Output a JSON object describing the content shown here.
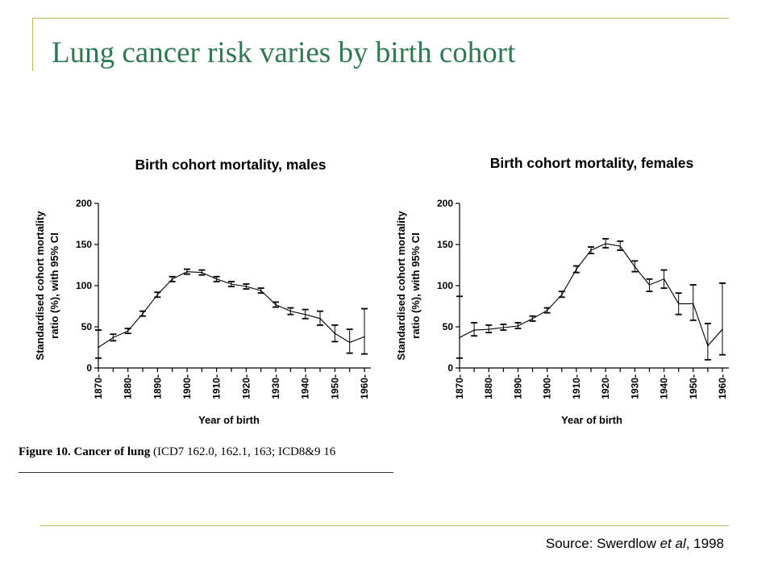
{
  "slide": {
    "title": "Lung cancer risk varies by birth cohort",
    "source_prefix": "Source: Swerdlow ",
    "source_italic": "et al",
    "source_suffix": ", 1998"
  },
  "figure_caption": {
    "bold": "Figure 10. Cancer of lung",
    "rest": " (ICD7 162.0, 162.1, 163; ICD8&9 16"
  },
  "colors": {
    "title": "#2e7a4f",
    "frame": "#c8b560",
    "ink": "#000000"
  },
  "chart_data": [
    {
      "type": "line",
      "title": "Birth cohort mortality, males",
      "xlabel": "Year of birth",
      "ylabel_lines": [
        "Standardised cohort mortality",
        "ratio (%), with 95% CI"
      ],
      "ylim": [
        0,
        200
      ],
      "yticks": [
        0,
        50,
        100,
        150,
        200
      ],
      "x_tick_labels": [
        "1870-",
        "1880-",
        "1890-",
        "1900-",
        "1910-",
        "1920-",
        "1930-",
        "1940-",
        "1950-",
        "1960-"
      ],
      "x": [
        1870,
        1875,
        1880,
        1885,
        1890,
        1895,
        1900,
        1905,
        1910,
        1915,
        1920,
        1925,
        1930,
        1935,
        1940,
        1945,
        1950,
        1955,
        1960
      ],
      "series": [
        {
          "values": [
            25,
            37,
            45,
            66,
            89,
            108,
            117,
            116,
            108,
            102,
            99,
            94,
            77,
            69,
            65,
            60,
            42,
            31,
            38
          ],
          "ci_lower": [
            12,
            33,
            42,
            63,
            86,
            105,
            114,
            113,
            105,
            99,
            96,
            91,
            74,
            65,
            60,
            52,
            32,
            18,
            17
          ],
          "ci_upper": [
            46,
            41,
            48,
            69,
            92,
            111,
            120,
            119,
            111,
            105,
            102,
            97,
            80,
            73,
            71,
            69,
            52,
            47,
            72
          ]
        }
      ]
    },
    {
      "type": "line",
      "title": "Birth cohort mortality, females",
      "xlabel": "Year of birth",
      "ylabel_lines": [
        "Standardised cohort mortality",
        "ratio (%), with 95% CI"
      ],
      "ylim": [
        0,
        200
      ],
      "yticks": [
        0,
        50,
        100,
        150,
        200
      ],
      "x_tick_labels": [
        "1870-",
        "1880-",
        "1890-",
        "1900-",
        "1910-",
        "1920-",
        "1930-",
        "1940-",
        "1950-",
        "1960-"
      ],
      "x": [
        1870,
        1875,
        1880,
        1885,
        1890,
        1895,
        1900,
        1905,
        1910,
        1915,
        1920,
        1925,
        1930,
        1935,
        1940,
        1945,
        1950,
        1955,
        1960
      ],
      "series": [
        {
          "values": [
            37,
            46,
            47,
            49,
            51,
            60,
            70,
            89,
            120,
            143,
            151,
            148,
            123,
            101,
            108,
            78,
            78,
            27,
            47
          ],
          "ci_lower": [
            12,
            39,
            43,
            46,
            48,
            57,
            67,
            86,
            116,
            139,
            146,
            143,
            117,
            93,
            97,
            65,
            58,
            10,
            16
          ],
          "ci_upper": [
            87,
            55,
            52,
            53,
            55,
            63,
            73,
            93,
            124,
            147,
            157,
            154,
            130,
            108,
            119,
            91,
            101,
            54,
            103
          ]
        }
      ]
    }
  ]
}
